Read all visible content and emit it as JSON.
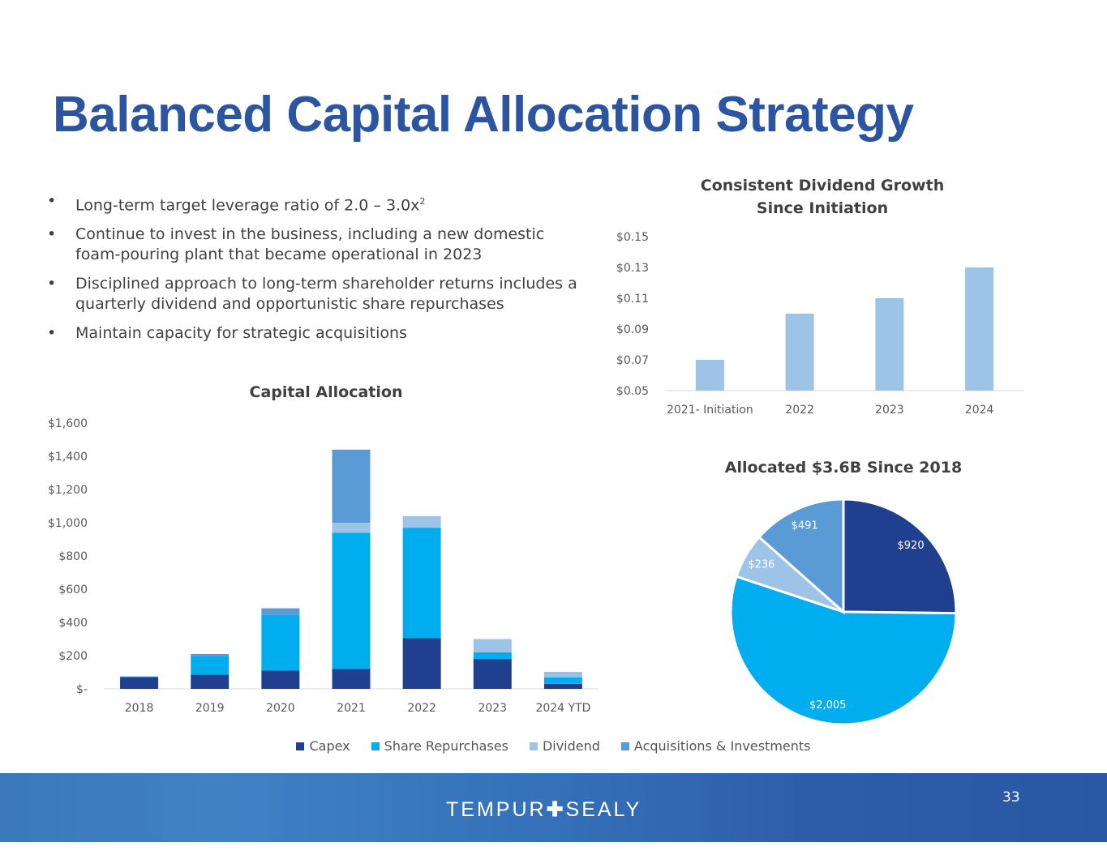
{
  "title": "Balanced Capital Allocation Strategy",
  "bullets": [
    {
      "text": "Long-term target leverage ratio of 2.0 – 3.0x",
      "sup": "2"
    },
    {
      "text": "Continue to invest in the business, including a new domestic foam-pouring plant that became operational in 2023",
      "sup": ""
    },
    {
      "text": "Disciplined approach to long-term shareholder returns includes a quarterly dividend and opportunistic share repurchases",
      "sup": ""
    },
    {
      "text": "Maintain capacity for strategic acquisitions",
      "sup": ""
    }
  ],
  "bullet_glyph": "•",
  "chart_data": [
    {
      "type": "bar",
      "title_line1": "Consistent Dividend Growth",
      "title_line2": "Since Initiation",
      "categories": [
        "2021- Initiation",
        "2022",
        "2023",
        "2024"
      ],
      "values": [
        0.07,
        0.1,
        0.11,
        0.13
      ],
      "ylim": [
        0.05,
        0.15
      ],
      "yticks": [
        0.05,
        0.07,
        0.09,
        0.11,
        0.13,
        0.15
      ],
      "ytick_labels": [
        "$0.05",
        "$0.07",
        "$0.09",
        "$0.11",
        "$0.13",
        "$0.15"
      ],
      "color": "#9dc3e6"
    },
    {
      "type": "bar",
      "stacked": true,
      "title": "Capital Allocation",
      "categories": [
        "2018",
        "2019",
        "2020",
        "2021",
        "2022",
        "2023",
        "2024 YTD"
      ],
      "ylim": [
        0,
        1600
      ],
      "yticks": [
        0,
        200,
        400,
        600,
        800,
        1000,
        1200,
        1400,
        1600
      ],
      "ytick_labels": [
        "$-",
        "$200",
        "$400",
        "$600",
        "$800",
        "$1,000",
        "$1,200",
        "$1,400",
        "$1,600"
      ],
      "series": [
        {
          "name": "Capex",
          "color": "#203f8f",
          "values": [
            70,
            85,
            110,
            120,
            305,
            180,
            30
          ]
        },
        {
          "name": "Share Repurchases",
          "color": "#00aeef",
          "values": [
            5,
            110,
            335,
            820,
            665,
            40,
            40
          ]
        },
        {
          "name": "Dividend",
          "color": "#9dc3e6",
          "values": [
            0,
            0,
            0,
            60,
            70,
            80,
            25
          ]
        },
        {
          "name": "Acquisitions & Investments",
          "color": "#5b9bd5",
          "values": [
            0,
            15,
            40,
            440,
            0,
            0,
            5
          ]
        }
      ]
    },
    {
      "type": "pie",
      "title": "Allocated $3.6B Since 2018",
      "labels": [
        "Capex",
        "Share Repurchases",
        "Dividend",
        "Acquisitions & Investments"
      ],
      "values": [
        920,
        2005,
        236,
        491
      ],
      "value_labels": [
        "$920",
        "$2,005",
        "$236",
        "$491"
      ],
      "colors": [
        "#203f8f",
        "#00aeef",
        "#9dc3e6",
        "#5b9bd5"
      ]
    }
  ],
  "footer": {
    "brand_left": "TEMPUR",
    "brand_plus": "✚",
    "brand_right": "SEALY",
    "page_number": "33"
  }
}
